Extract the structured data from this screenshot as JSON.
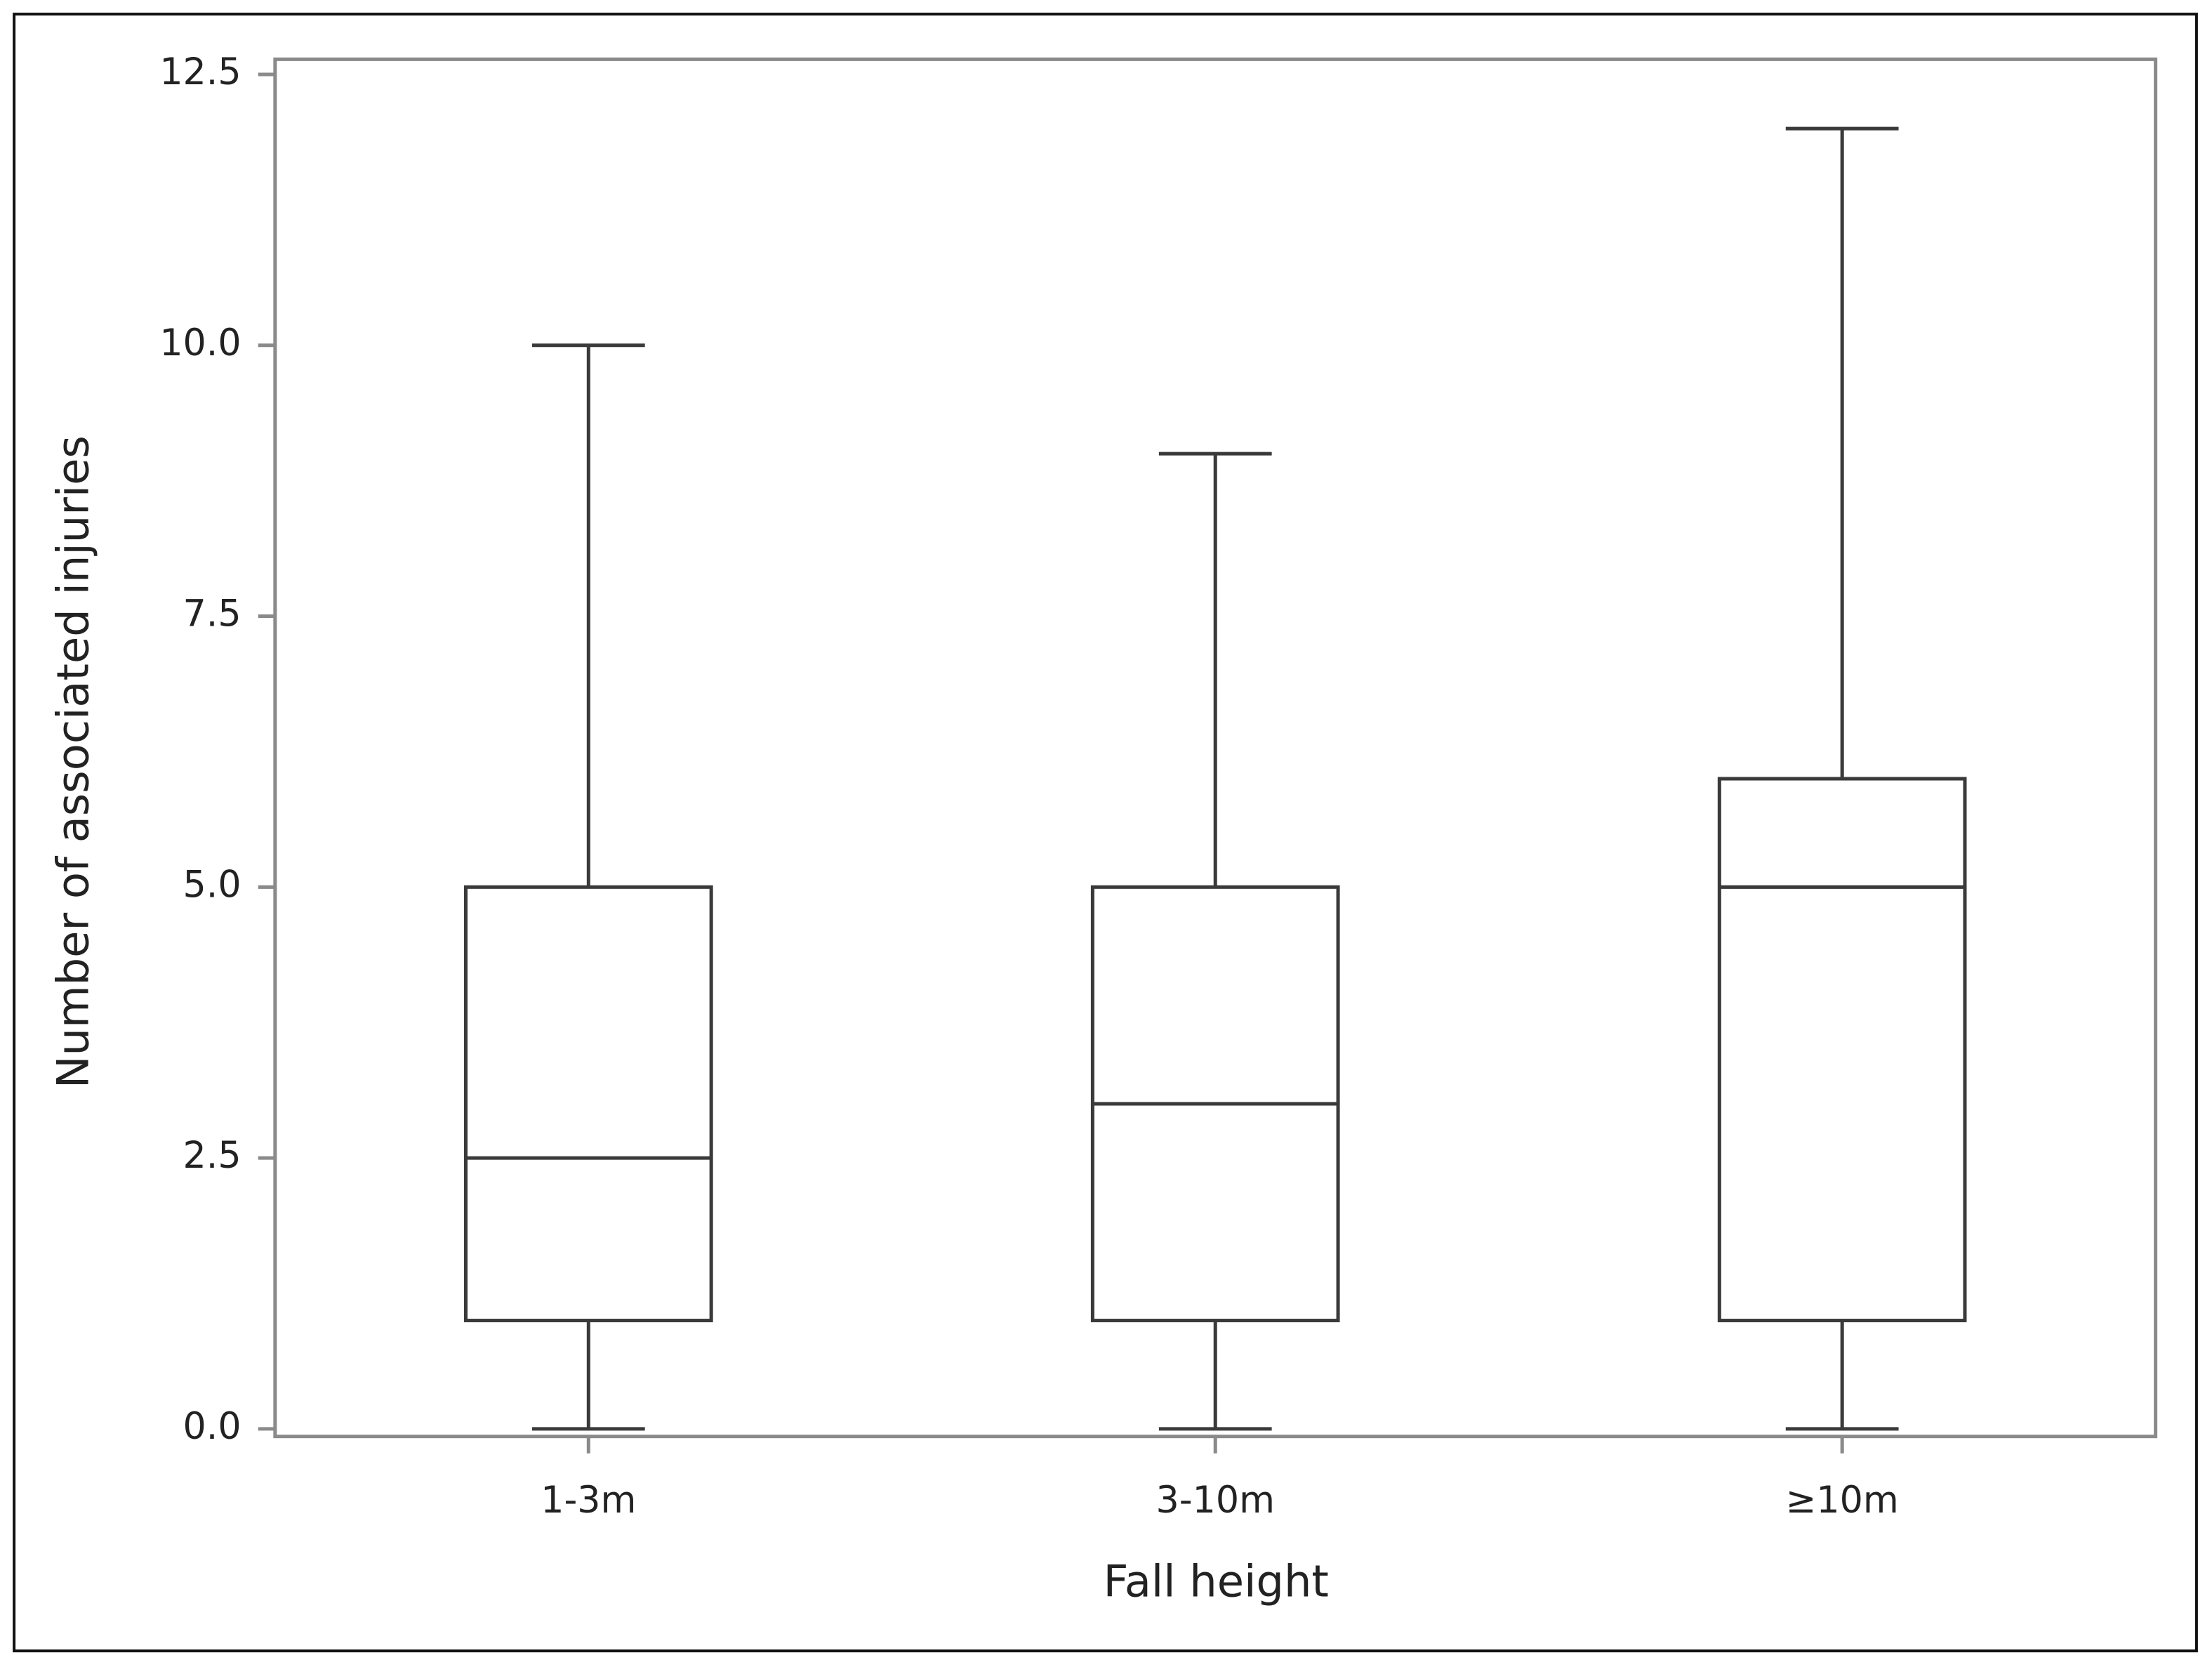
{
  "chart_data": {
    "type": "box",
    "x_label": "Fall height",
    "y_label": "Number of associated injuries",
    "categories": [
      "1-3m",
      "3-10m",
      "≥10m"
    ],
    "min": [
      0,
      0,
      0
    ],
    "q1": [
      1,
      1,
      1
    ],
    "median": [
      2.5,
      3,
      5
    ],
    "q3": [
      5,
      5,
      6
    ],
    "max": [
      10,
      9,
      12
    ],
    "ylim": [
      -0.07,
      12.64
    ],
    "yticks": [
      {
        "value": 0,
        "label": "0.0"
      },
      2.5,
      {
        "value": 5,
        "label": "5.0"
      },
      7.5,
      {
        "value": 10,
        "label": "10.0"
      },
      12.5
    ],
    "color": "#3a3a3a"
  }
}
